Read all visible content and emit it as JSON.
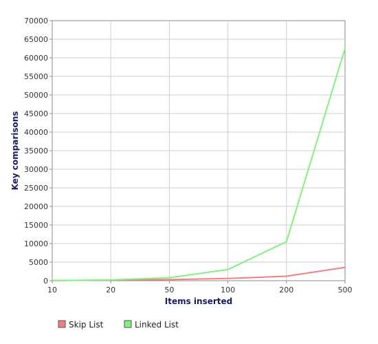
{
  "chart_data": {
    "type": "line",
    "xlabel": "Items inserted",
    "ylabel": "Key comparisons",
    "x": [
      "10",
      "20",
      "50",
      "100",
      "200",
      "500"
    ],
    "ylim": [
      0,
      70000
    ],
    "y_ticks": [
      "0",
      "5000",
      "10000",
      "15000",
      "20000",
      "25000",
      "30000",
      "35000",
      "40000",
      "45000",
      "50000",
      "55000",
      "60000",
      "65000",
      "70000"
    ],
    "grid": true,
    "legend_position": "bottom-left",
    "series": [
      {
        "name": "Skip List",
        "color": "#f08080",
        "values": [
          30,
          150,
          300,
          600,
          1200,
          3600
        ]
      },
      {
        "name": "Linked List",
        "color": "#80f080",
        "values": [
          45,
          200,
          800,
          3000,
          10500,
          62500
        ]
      }
    ]
  }
}
